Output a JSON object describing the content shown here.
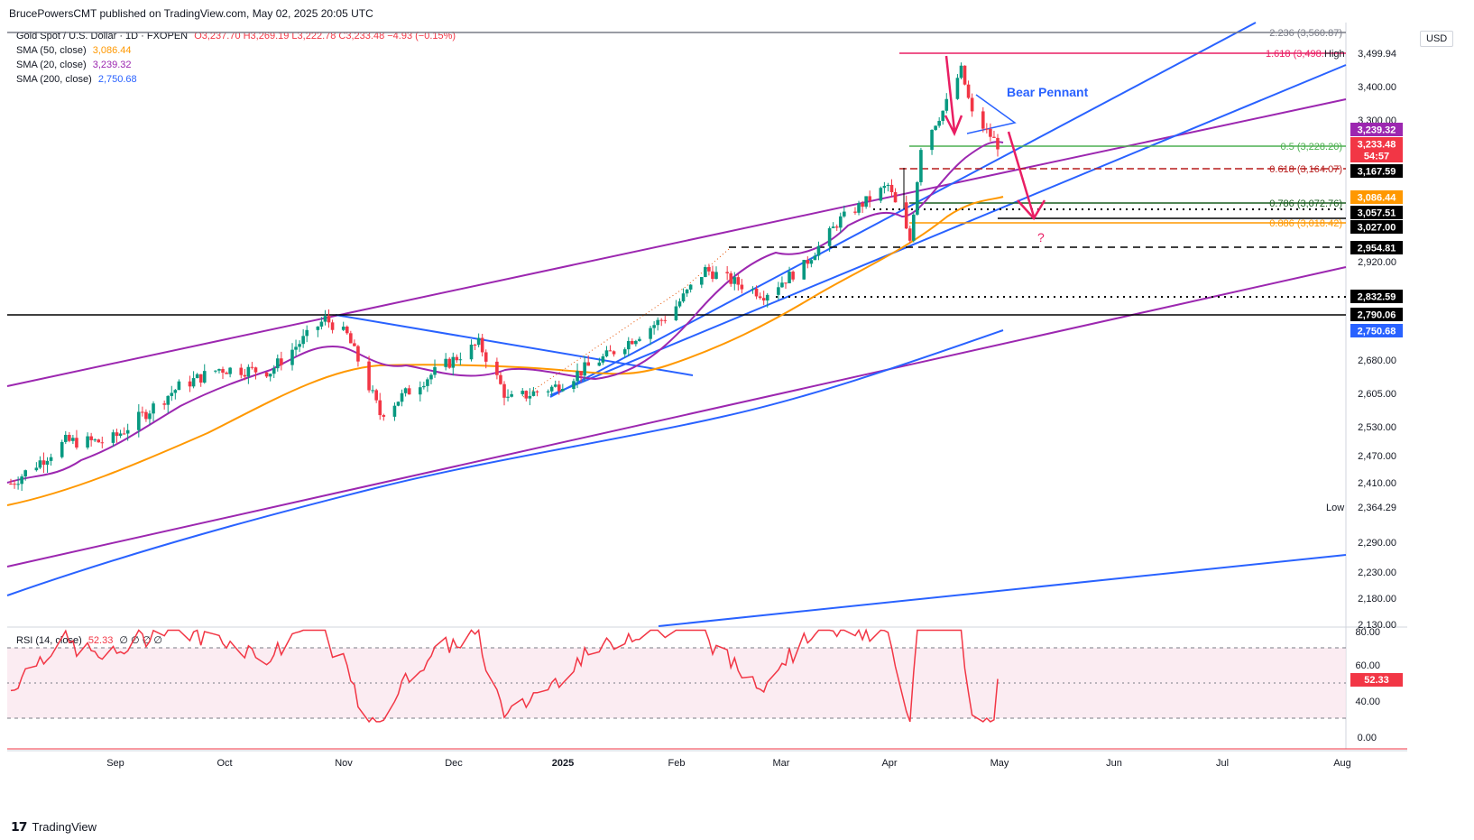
{
  "header": {
    "publisher_line": "BrucePowersCMT published on TradingView.com, May 02, 2025 20:05 UTC"
  },
  "legend": {
    "symbol": "Gold Spot / U.S. Dollar · 1D · FXOPEN",
    "ohlc": "O3,237.70 H3,269.19 L3,222.78 C3,233.48 −4.93 (−0.15%)",
    "sma50_label": "SMA (50, close)",
    "sma50_value": "3,086.44",
    "sma20_label": "SMA (20, close)",
    "sma20_value": "3,239.32",
    "sma200_label": "SMA (200, close)",
    "sma200_value": "2,750.68",
    "rsi_label": "RSI (14, close)",
    "rsi_value": "52.33",
    "rsi_extra": "∅ ∅ ∅ ∅"
  },
  "currency": "USD",
  "brand": "TradingView",
  "colors": {
    "up": "#089981",
    "down": "#f23645",
    "sma50": "#ff9800",
    "sma20": "#9c27b0",
    "sma200": "#2962ff",
    "trend_blue": "#2962ff",
    "trend_purple": "#9c27b0",
    "fib_magenta": "#e91e63",
    "fib_green": "#4caf50",
    "rsi": "#f23645",
    "annotation": "#e91e63"
  },
  "chart_data": {
    "type": "candlestick",
    "title": "Gold Spot / U.S. Dollar · 1D · FXOPEN",
    "x_tick_labels": [
      "Sep",
      "Oct",
      "Nov",
      "Dec",
      "2025",
      "Feb",
      "Mar",
      "Apr",
      "May",
      "Jun",
      "Jul",
      "Aug"
    ],
    "y_tick_labels": [
      "3,499.94",
      "3,400.00",
      "3,300.00",
      "3,167.59",
      "2,920.00",
      "2,680.00",
      "2,605.00",
      "2,530.00",
      "2,470.00",
      "2,410.00",
      "2,364.29",
      "2,290.00",
      "2,230.00",
      "2,180.00",
      "2,130.00"
    ],
    "ylim": [
      2130,
      3600
    ],
    "approx_close_path": [
      [
        "2024-08-05",
        2410
      ],
      [
        "2024-08-20",
        2500
      ],
      [
        "2024-09-01",
        2500
      ],
      [
        "2024-09-20",
        2620
      ],
      [
        "2024-10-01",
        2660
      ],
      [
        "2024-10-15",
        2655
      ],
      [
        "2024-10-30",
        2780
      ],
      [
        "2024-11-05",
        2740
      ],
      [
        "2024-11-14",
        2560
      ],
      [
        "2024-11-25",
        2630
      ],
      [
        "2024-12-11",
        2720
      ],
      [
        "2024-12-19",
        2590
      ],
      [
        "2025-01-01",
        2620
      ],
      [
        "2025-01-15",
        2690
      ],
      [
        "2025-02-01",
        2790
      ],
      [
        "2025-02-11",
        2900
      ],
      [
        "2025-02-27",
        2840
      ],
      [
        "2025-03-10",
        2910
      ],
      [
        "2025-03-20",
        3040
      ],
      [
        "2025-04-02",
        3130
      ],
      [
        "2025-04-08",
        2980
      ],
      [
        "2025-04-11",
        3230
      ],
      [
        "2025-04-17",
        3330
      ],
      [
        "2025-04-22",
        3450
      ],
      [
        "2025-04-25",
        3320
      ],
      [
        "2025-05-02",
        3233.48
      ]
    ],
    "annotations": [
      {
        "text": "Bear Pennant"
      },
      {
        "text": "?"
      },
      {
        "text": "High"
      },
      {
        "text": "Low"
      }
    ],
    "fib_levels": [
      {
        "label": "2.236 (3,560.87)",
        "value": 3560.87
      },
      {
        "label": "1.618 (3,498.",
        "value": 3498
      },
      {
        "label": "0.5 (3,228.20)",
        "value": 3228.2
      },
      {
        "label": "0.618 (3,164.07)",
        "value": 3164.07
      },
      {
        "label": "0.786 (3,072.76)",
        "value": 3072.76
      },
      {
        "label": "0.886 (3,018.42)",
        "value": 3018.42
      }
    ],
    "price_tags": [
      {
        "text": "3,239.32",
        "color": "#9c27b0"
      },
      {
        "text": "3,233.48",
        "color": "#f23645"
      },
      {
        "text": "54:57",
        "color": "#f23645"
      },
      {
        "text": "3,167.59",
        "color": "#000000"
      },
      {
        "text": "3,086.44",
        "color": "#ff9800"
      },
      {
        "text": "3,057.51",
        "color": "#000000"
      },
      {
        "text": "3,027.00",
        "color": "#000000"
      },
      {
        "text": "2,954.81",
        "color": "#000000"
      },
      {
        "text": "2,832.59",
        "color": "#000000"
      },
      {
        "text": "2,790.06",
        "color": "#000000"
      },
      {
        "text": "2,750.68",
        "color": "#2962ff"
      }
    ],
    "rsi": {
      "y_tick_labels": [
        "80.00",
        "60.00",
        "40.00",
        "0.00"
      ],
      "current": 52.33,
      "band": [
        30,
        70
      ]
    }
  }
}
